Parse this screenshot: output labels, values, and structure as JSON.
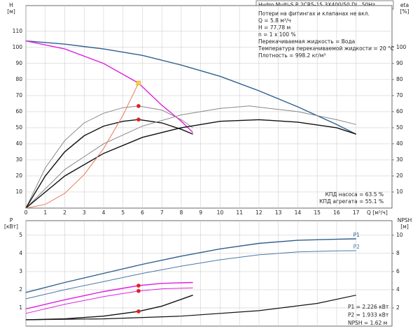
{
  "chart_data": [
    {
      "type": "line",
      "header": "Hydro Multi-S P 2CR5-15 3X400/50 DL, 50Hz",
      "notes": [
        "Потери на фитингах и клапанах не вкл.",
        "Q = 5.8 м³/ч",
        "H = 77.78 м",
        "n = 1 x 100 %",
        "Перекачиваемая жидкость = Вода",
        "Температура перекачиваемой жидкости = 20 °C",
        "Плотность = 998.2 кг/м³"
      ],
      "efficiency_notes": [
        "КПД насоса = 63.5 %",
        "КПД агрегата = 55.1 %"
      ],
      "ylabel": [
        "H",
        "[м]"
      ],
      "y2label": [
        "eta",
        "[%]"
      ],
      "xlabel": "Q [м³/ч]",
      "xlim": [
        0,
        18.85
      ],
      "xticks": [
        0,
        1,
        2,
        3,
        4,
        5,
        6,
        7,
        8,
        9,
        10,
        11,
        12,
        13,
        14,
        15,
        16,
        17
      ],
      "ylim": [
        0,
        126
      ],
      "yticks": [
        10,
        20,
        30,
        40,
        50,
        60,
        70,
        80,
        90,
        100,
        110
      ],
      "y2lim": [
        0,
        126
      ],
      "y2ticks": [
        10,
        20,
        30,
        40,
        50,
        60,
        70,
        80,
        90,
        100
      ],
      "grid": true,
      "show_xtick_labels": true,
      "series": [
        {
          "color": "#2f5f8f",
          "line_width": 1.4,
          "x": [
            0,
            2,
            4,
            6,
            8,
            10,
            12,
            14,
            16,
            17
          ],
          "values": [
            104,
            102,
            99,
            95,
            89,
            82,
            73,
            63,
            52,
            46
          ]
        },
        {
          "color": "#e020e0",
          "line_width": 1.4,
          "x": [
            0,
            2,
            4,
            5.8,
            7,
            8,
            8.6
          ],
          "values": [
            104,
            99,
            90,
            77.78,
            64,
            54,
            47
          ]
        },
        {
          "color": "#888888",
          "line_width": 1,
          "axis": "y2",
          "x": [
            0,
            1,
            2,
            3,
            4,
            5,
            5.8,
            7,
            8,
            8.6
          ],
          "values": [
            0,
            25,
            42,
            53,
            59,
            62.5,
            63.5,
            61,
            55,
            50
          ]
        },
        {
          "color": "#111111",
          "line_width": 1.4,
          "axis": "y2",
          "x": [
            0,
            1,
            2,
            3,
            4,
            5,
            5.8,
            7,
            8,
            8.6
          ],
          "values": [
            0,
            20,
            35,
            45,
            51,
            54,
            55.1,
            53,
            49,
            46
          ]
        },
        {
          "color": "#888888",
          "line_width": 1,
          "axis": "y2",
          "x": [
            0,
            2,
            4,
            6,
            8,
            10,
            11.5,
            14,
            16,
            17
          ],
          "values": [
            0,
            24,
            40,
            51,
            58,
            62,
            63.5,
            60,
            55,
            52
          ]
        },
        {
          "color": "#111111",
          "line_width": 1.4,
          "axis": "y2",
          "x": [
            0,
            2,
            4,
            6,
            8,
            10,
            12,
            14,
            16,
            17
          ],
          "values": [
            0,
            20,
            34,
            44,
            50,
            54,
            55,
            53.5,
            50,
            46
          ]
        },
        {
          "color": "#e87a5a",
          "line_width": 1,
          "x": [
            0,
            1,
            2,
            3,
            4,
            5,
            5.8
          ],
          "values": [
            0,
            2.3,
            9.2,
            20.8,
            37,
            57.8,
            77.78
          ]
        }
      ],
      "points": [
        {
          "x": 5.8,
          "y": 77.78,
          "color": "#f5d142",
          "shape": "square"
        },
        {
          "x": 5.8,
          "y": 63.5,
          "color": "#e02020",
          "shape": "circle",
          "axis": "y2"
        },
        {
          "x": 5.8,
          "y": 55.1,
          "color": "#e02020",
          "shape": "circle",
          "axis": "y2"
        }
      ]
    },
    {
      "type": "line",
      "notes": [
        "P1 = 2.226 кВт",
        "P2 = 1.933 кВт",
        "NPSH = 1.62 м"
      ],
      "ylabel": [
        "P",
        "[кВт]"
      ],
      "y2label": [
        "NPSH",
        "[м]"
      ],
      "xlim": [
        0,
        18.85
      ],
      "xticks": [
        0,
        1,
        2,
        3,
        4,
        5,
        6,
        7,
        8,
        9,
        10,
        11,
        12,
        13,
        14,
        15,
        16,
        17
      ],
      "ylim": [
        0,
        5.8
      ],
      "yticks": [
        1,
        2,
        3,
        4,
        5
      ],
      "y2lim": [
        0,
        11.6
      ],
      "y2ticks": [
        2,
        4,
        6,
        8,
        10
      ],
      "grid": true,
      "show_xtick_labels": false,
      "series": [
        {
          "label": "P1",
          "color": "#2f5f8f",
          "line_width": 1.4,
          "x": [
            0,
            2,
            4,
            6,
            8,
            10,
            12,
            14,
            16,
            17
          ],
          "values": [
            1.85,
            2.4,
            2.9,
            3.4,
            3.85,
            4.25,
            4.55,
            4.72,
            4.78,
            4.8
          ]
        },
        {
          "label": "P2",
          "color": "#4a78a8",
          "line_width": 1,
          "x": [
            0,
            2,
            4,
            6,
            8,
            10,
            12,
            14,
            16,
            17
          ],
          "values": [
            1.5,
            2.0,
            2.45,
            2.9,
            3.3,
            3.65,
            3.92,
            4.08,
            4.14,
            4.15
          ]
        },
        {
          "color": "#e020e0",
          "line_width": 1.4,
          "x": [
            0,
            2,
            4,
            5.8,
            7,
            8.6
          ],
          "values": [
            0.95,
            1.45,
            1.9,
            2.226,
            2.35,
            2.4
          ]
        },
        {
          "color": "#e020e0",
          "line_width": 1,
          "x": [
            0,
            2,
            4,
            5.8,
            7,
            8.6
          ],
          "values": [
            0.7,
            1.2,
            1.62,
            1.933,
            2.05,
            2.1
          ]
        },
        {
          "color": "#111111",
          "line_width": 1.4,
          "axis": "y2",
          "x": [
            0,
            2,
            4,
            5.8,
            7,
            8.6
          ],
          "values": [
            0.7,
            0.8,
            1.1,
            1.62,
            2.2,
            3.4
          ]
        },
        {
          "color": "#111111",
          "line_width": 1.2,
          "axis": "y2",
          "x": [
            0,
            4,
            8,
            12,
            15,
            17
          ],
          "values": [
            0.7,
            0.8,
            1.1,
            1.7,
            2.5,
            3.4
          ]
        }
      ],
      "points": [
        {
          "x": 5.8,
          "y": 2.226,
          "color": "#e02020",
          "shape": "circle"
        },
        {
          "x": 5.8,
          "y": 1.933,
          "color": "#e02020",
          "shape": "circle"
        },
        {
          "x": 5.8,
          "y": 1.62,
          "color": "#e02020",
          "shape": "circle",
          "axis": "y2"
        }
      ]
    }
  ]
}
